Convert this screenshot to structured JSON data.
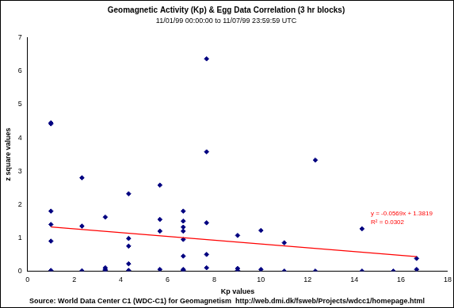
{
  "chart_data": {
    "type": "scatter",
    "title": "Geomagnetic Activity (Kp) & Egg Data Correlation (3 hr blocks)",
    "subtitle": "11/01/99 00:00:00 to 11/07/99 23:59:59 UTC",
    "x_label": "Kp values",
    "y_label": "z square values",
    "source": "Source: World Data Center C1 (WDC-C1) for Geomagnetism  http://web.dmi.dk/fsweb/Projects/wdcc1/homepage.html",
    "annotations": [
      "y = -0.0569x + 1.3819",
      "R² = 0.0302"
    ],
    "xlim": [
      0,
      18
    ],
    "xticks": [
      0,
      2,
      4,
      6,
      8,
      10,
      12,
      14,
      16,
      18
    ],
    "ylim": [
      0,
      7
    ],
    "yticks": [
      0,
      1,
      2,
      3,
      4,
      5,
      6,
      7
    ],
    "grid": false,
    "series": [
      {
        "type": "scatter",
        "color": "#000080",
        "marker": "diamond",
        "x": [
          1,
          1,
          1,
          1,
          1,
          1,
          2.33,
          2.33,
          2.33,
          3.33,
          3.33,
          3.33,
          3.33,
          4.33,
          4.33,
          4.33,
          4.33,
          4.33,
          5.67,
          5.67,
          5.67,
          5.67,
          6.67,
          6.67,
          6.67,
          6.67,
          6.67,
          6.67,
          6.67,
          6.67,
          7.67,
          7.67,
          7.67,
          7.67,
          7.67,
          9,
          9,
          9,
          10,
          10,
          11,
          11,
          12.33,
          12.33,
          14.33,
          14.33,
          15.67,
          16.67,
          16.67
        ],
        "values": [
          4.45,
          4.42,
          1.8,
          1.4,
          0.9,
          0.02,
          2.8,
          1.35,
          0.01,
          1.62,
          0.1,
          0.05,
          0.02,
          2.32,
          0.98,
          0.75,
          0.22,
          0.02,
          2.58,
          1.55,
          1.2,
          0.05,
          1.8,
          1.5,
          1.32,
          1.2,
          0.95,
          0.45,
          0.05,
          0.02,
          6.37,
          3.58,
          1.45,
          0.5,
          0.1,
          1.07,
          0.08,
          0.02,
          1.22,
          0.05,
          0.85,
          0.0,
          3.33,
          0.0,
          1.27,
          0.0,
          0.0,
          0.38,
          0.05
        ]
      },
      {
        "type": "line",
        "color": "#ff0000",
        "line_style": "solid",
        "x": [
          1,
          16.67
        ],
        "values": [
          1.325,
          0.433
        ]
      }
    ]
  }
}
